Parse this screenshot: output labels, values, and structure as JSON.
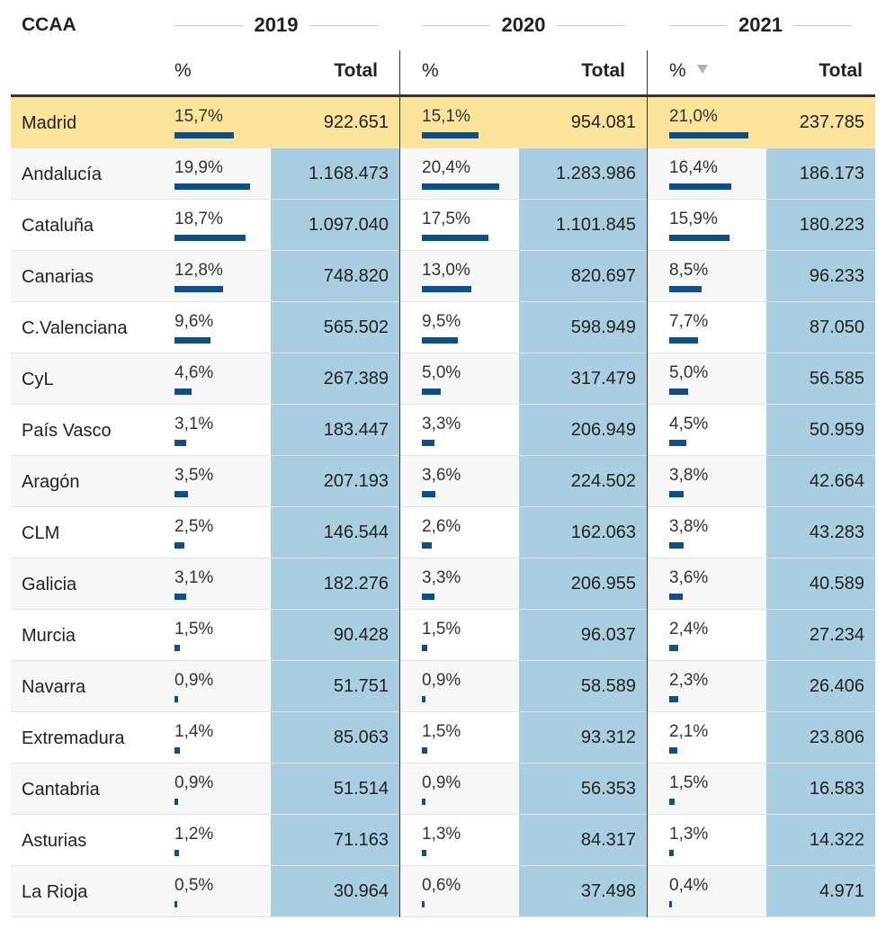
{
  "header": {
    "ccaa_label": "CCAA",
    "years": [
      "2019",
      "2020",
      "2021"
    ],
    "pct_label": "%",
    "total_label": "Total"
  },
  "rows": [
    {
      "name": "Madrid",
      "y2019": {
        "pct": "15,7%",
        "total": "922.651"
      },
      "y2020": {
        "pct": "15,1%",
        "total": "954.081"
      },
      "y2021": {
        "pct": "21,0%",
        "total": "237.785"
      }
    },
    {
      "name": "Andalucía",
      "y2019": {
        "pct": "19,9%",
        "total": "1.168.473"
      },
      "y2020": {
        "pct": "20,4%",
        "total": "1.283.986"
      },
      "y2021": {
        "pct": "16,4%",
        "total": "186.173"
      }
    },
    {
      "name": "Cataluña",
      "y2019": {
        "pct": "18,7%",
        "total": "1.097.040"
      },
      "y2020": {
        "pct": "17,5%",
        "total": "1.101.845"
      },
      "y2021": {
        "pct": "15,9%",
        "total": "180.223"
      }
    },
    {
      "name": "Canarias",
      "y2019": {
        "pct": "12,8%",
        "total": "748.820"
      },
      "y2020": {
        "pct": "13,0%",
        "total": "820.697"
      },
      "y2021": {
        "pct": "8,5%",
        "total": "96.233"
      }
    },
    {
      "name": "C.Valenciana",
      "y2019": {
        "pct": "9,6%",
        "total": "565.502"
      },
      "y2020": {
        "pct": "9,5%",
        "total": "598.949"
      },
      "y2021": {
        "pct": "7,7%",
        "total": "87.050"
      }
    },
    {
      "name": "CyL",
      "y2019": {
        "pct": "4,6%",
        "total": "267.389"
      },
      "y2020": {
        "pct": "5,0%",
        "total": "317.479"
      },
      "y2021": {
        "pct": "5,0%",
        "total": "56.585"
      }
    },
    {
      "name": "País Vasco",
      "y2019": {
        "pct": "3,1%",
        "total": "183.447"
      },
      "y2020": {
        "pct": "3,3%",
        "total": "206.949"
      },
      "y2021": {
        "pct": "4,5%",
        "total": "50.959"
      }
    },
    {
      "name": "Aragón",
      "y2019": {
        "pct": "3,5%",
        "total": "207.193"
      },
      "y2020": {
        "pct": "3,6%",
        "total": "224.502"
      },
      "y2021": {
        "pct": "3,8%",
        "total": "42.664"
      }
    },
    {
      "name": "CLM",
      "y2019": {
        "pct": "2,5%",
        "total": "146.544"
      },
      "y2020": {
        "pct": "2,6%",
        "total": "162.063"
      },
      "y2021": {
        "pct": "3,8%",
        "total": "43.283"
      }
    },
    {
      "name": "Galicia",
      "y2019": {
        "pct": "3,1%",
        "total": "182.276"
      },
      "y2020": {
        "pct": "3,3%",
        "total": "206.955"
      },
      "y2021": {
        "pct": "3,6%",
        "total": "40.589"
      }
    },
    {
      "name": "Murcia",
      "y2019": {
        "pct": "1,5%",
        "total": "90.428"
      },
      "y2020": {
        "pct": "1,5%",
        "total": "96.037"
      },
      "y2021": {
        "pct": "2,4%",
        "total": "27.234"
      }
    },
    {
      "name": "Navarra",
      "y2019": {
        "pct": "0,9%",
        "total": "51.751"
      },
      "y2020": {
        "pct": "0,9%",
        "total": "58.589"
      },
      "y2021": {
        "pct": "2,3%",
        "total": "26.406"
      }
    },
    {
      "name": "Extremadura",
      "y2019": {
        "pct": "1,4%",
        "total": "85.063"
      },
      "y2020": {
        "pct": "1,5%",
        "total": "93.312"
      },
      "y2021": {
        "pct": "2,1%",
        "total": "23.806"
      }
    },
    {
      "name": "Cantabria",
      "y2019": {
        "pct": "0,9%",
        "total": "51.514"
      },
      "y2020": {
        "pct": "0,9%",
        "total": "56.353"
      },
      "y2021": {
        "pct": "1,5%",
        "total": "16.583"
      }
    },
    {
      "name": "Asturias",
      "y2019": {
        "pct": "1,2%",
        "total": "71.163"
      },
      "y2020": {
        "pct": "1,3%",
        "total": "84.317"
      },
      "y2021": {
        "pct": "1,3%",
        "total": "14.322"
      }
    },
    {
      "name": "La Rioja",
      "y2019": {
        "pct": "0,5%",
        "total": "30.964"
      },
      "y2020": {
        "pct": "0,6%",
        "total": "37.498"
      },
      "y2021": {
        "pct": "0,4%",
        "total": "4.971"
      }
    }
  ],
  "highlight_row": "Madrid",
  "sort_column": "2021 %",
  "sort_direction": "descending",
  "colors": {
    "bar": "#0b4f8f",
    "total_shade": "#a9cee1",
    "highlight": "#fbe39a",
    "alt_row": "#f7f7f7"
  },
  "icons": {
    "sort": "sort-desc-icon"
  }
}
